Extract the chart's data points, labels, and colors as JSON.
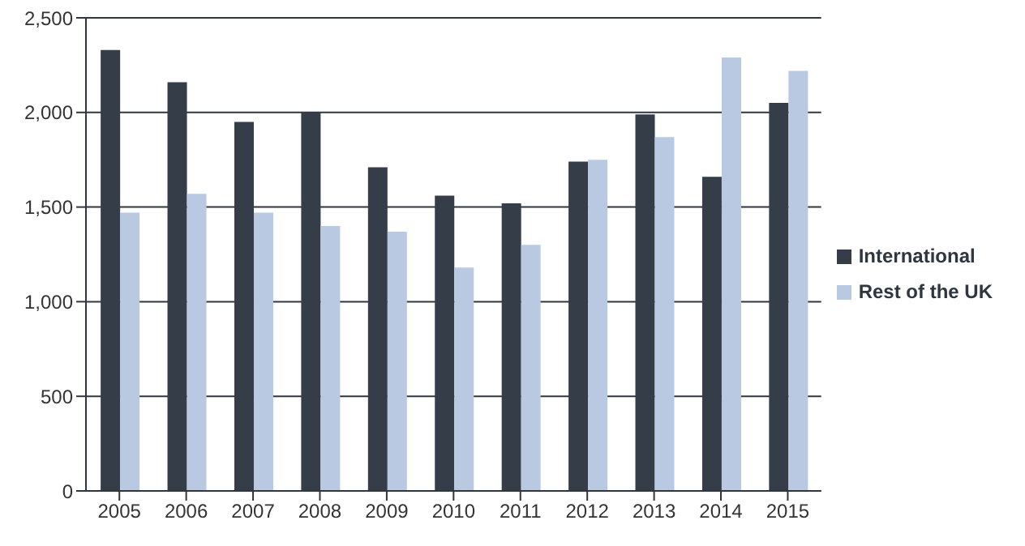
{
  "chart_data": {
    "type": "bar",
    "categories": [
      "2005",
      "2006",
      "2007",
      "2008",
      "2009",
      "2010",
      "2011",
      "2012",
      "2013",
      "2014",
      "2015"
    ],
    "series": [
      {
        "name": "International",
        "color": "#343d48",
        "values": [
          2330,
          2160,
          1950,
          2000,
          1710,
          1560,
          1520,
          1740,
          1990,
          1660,
          2050
        ]
      },
      {
        "name": "Rest of the UK",
        "color": "#b9c9e2",
        "values": [
          1470,
          1570,
          1470,
          1400,
          1370,
          1180,
          1300,
          1750,
          1870,
          2290,
          2220
        ]
      }
    ],
    "ylim": [
      0,
      2500
    ],
    "yticks": [
      0,
      500,
      {
        "value": 1000,
        "label": "1,000"
      },
      {
        "value": 1500,
        "label": "1,500"
      },
      {
        "value": 2000,
        "label": "2,000"
      },
      {
        "value": 2500,
        "label": "2,500"
      }
    ],
    "grid": "y",
    "legend": "right"
  }
}
